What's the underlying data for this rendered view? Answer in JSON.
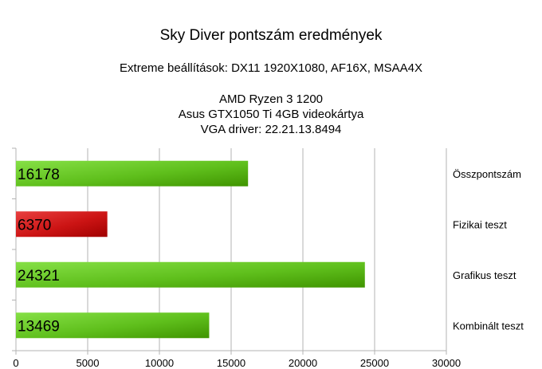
{
  "chart_data": {
    "type": "bar",
    "orientation": "horizontal",
    "title": "Sky Diver pontszám eredmények",
    "subtitle": "Extreme beállítások: DX11 1920X1080, AF16X, MSAA4X",
    "info_lines": [
      "AMD Ryzen 3 1200",
      "Asus GTX1050 Ti 4GB videokártya",
      "VGA driver: 22.21.13.8494"
    ],
    "categories": [
      "Összpontszám",
      "Fizikai teszt",
      "Grafikus teszt",
      "Kombinált teszt"
    ],
    "values": [
      16178,
      6370,
      24321,
      13469
    ],
    "bar_colors": [
      "green",
      "red",
      "green",
      "green"
    ],
    "xlim": [
      0,
      30000
    ],
    "xticks": [
      0,
      5000,
      10000,
      15000,
      20000,
      25000,
      30000
    ],
    "grid": true,
    "data_labels": true,
    "category_labels_position": "right"
  }
}
